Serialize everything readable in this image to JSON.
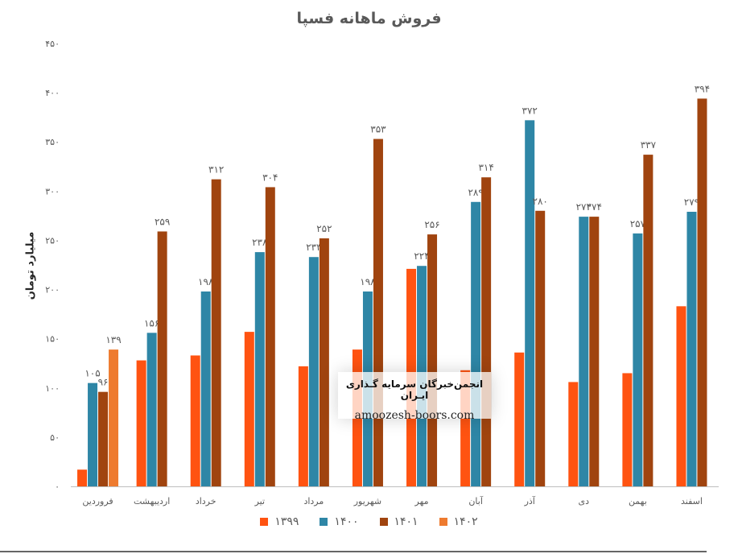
{
  "chart_data": {
    "type": "bar",
    "title": "فروش ماهانه فسپا",
    "ylabel": "میلیارد تومان",
    "xlabel": "",
    "ylim": [
      0,
      450
    ],
    "yticks": [
      0,
      50,
      100,
      150,
      200,
      250,
      300,
      350,
      400,
      450
    ],
    "ytick_labels": [
      "۰",
      "۵۰",
      "۱۰۰",
      "۱۵۰",
      "۲۰۰",
      "۲۵۰",
      "۳۰۰",
      "۳۵۰",
      "۴۰۰",
      "۴۵۰"
    ],
    "grid": false,
    "legend_position": "bottom",
    "categories": [
      "فروردین",
      "اردیبهشت",
      "خرداد",
      "تیر",
      "مرداد",
      "شهریور",
      "مهر",
      "آبان",
      "آذر",
      "دی",
      "بهمن",
      "اسفند"
    ],
    "series": [
      {
        "name": "۱۳۹۹",
        "color": "#FF5311",
        "values": [
          17,
          128,
          133,
          157,
          122,
          139,
          221,
          118,
          136,
          106,
          115,
          183
        ],
        "labels": [
          "",
          "",
          "",
          "",
          "",
          "",
          "",
          "",
          "",
          "",
          "",
          ""
        ]
      },
      {
        "name": "۱۴۰۰",
        "color": "#2E86A6",
        "values": [
          105,
          156,
          198,
          238,
          233,
          198,
          224,
          289,
          372,
          274,
          257,
          279
        ],
        "labels": [
          "۱۰۵",
          "۱۵۶",
          "۱۹۸",
          "۲۳۸",
          "۲۳۳",
          "۱۹۸",
          "۲۲۴",
          "۲۸۹",
          "۳۷۲",
          "۲۷۴",
          "۲۵۷",
          "۲۷۹"
        ]
      },
      {
        "name": "۱۴۰۱",
        "color": "#A0440F",
        "values": [
          96,
          259,
          312,
          304,
          252,
          353,
          256,
          314,
          280,
          274,
          337,
          394
        ],
        "labels": [
          "۹۶",
          "۲۵۹",
          "۳۱۲",
          "۳۰۴",
          "۲۵۲",
          "۳۵۳",
          "۲۵۶",
          "۳۱۴",
          "۲۸۰",
          "۲۷۴",
          "۳۳۷",
          "۳۹۴"
        ]
      },
      {
        "name": "۱۴۰۲",
        "color": "#EE7B2F",
        "values": [
          139,
          null,
          null,
          null,
          null,
          null,
          null,
          null,
          null,
          null,
          null,
          null
        ],
        "labels": [
          "۱۳۹",
          "",
          "",
          "",
          "",
          "",
          "",
          "",
          "",
          "",
          "",
          ""
        ]
      }
    ]
  },
  "watermark": {
    "title": "انجمن‌خبرگان سرمایه‌ گـذاری ایـران",
    "site": "amoozesh-boors.com"
  }
}
